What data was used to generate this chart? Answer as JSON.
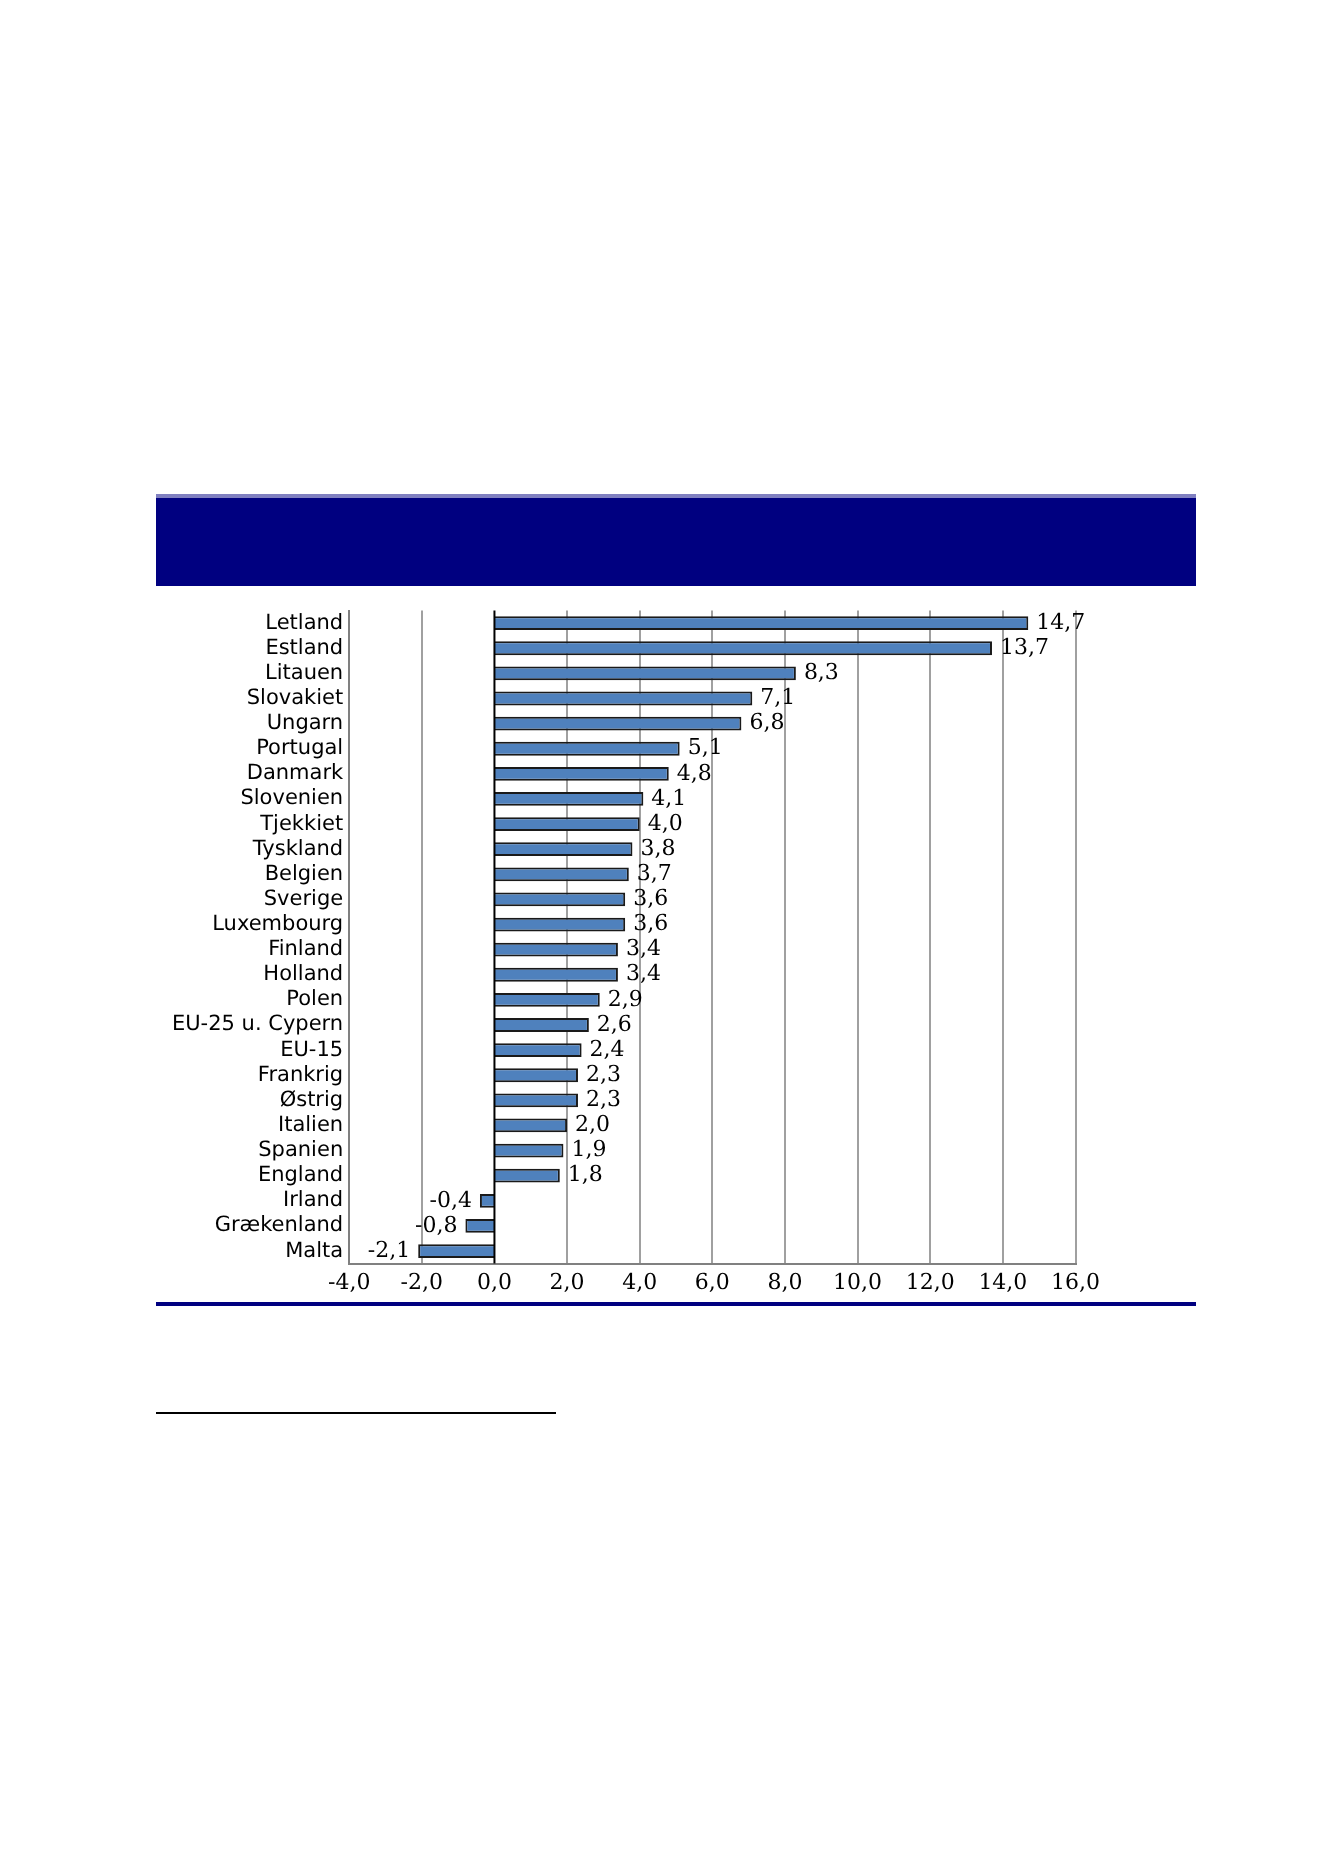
{
  "chart_data": {
    "type": "bar",
    "orientation": "horizontal",
    "categories": [
      "Letland",
      "Estland",
      "Litauen",
      "Slovakiet",
      "Ungarn",
      "Portugal",
      "Danmark",
      "Slovenien",
      "Tjekkiet",
      "Tyskland",
      "Belgien",
      "Sverige",
      "Luxembourg",
      "Finland",
      "Holland",
      "Polen",
      "EU-25 u. Cypern",
      "EU-15",
      "Frankrig",
      "Østrig",
      "Italien",
      "Spanien",
      "England",
      "Irland",
      "Grækenland",
      "Malta"
    ],
    "values": [
      14.7,
      13.7,
      8.3,
      7.1,
      6.8,
      5.1,
      4.8,
      4.1,
      4.0,
      3.8,
      3.7,
      3.6,
      3.6,
      3.4,
      3.4,
      2.9,
      2.6,
      2.4,
      2.3,
      2.3,
      2.0,
      1.9,
      1.8,
      -0.4,
      -0.8,
      -2.1
    ],
    "value_labels": [
      "14,7",
      "13,7",
      "8,3",
      "7,1",
      "6,8",
      "5,1",
      "4,8",
      "4,1",
      "4,0",
      "3,8",
      "3,7",
      "3,6",
      "3,6",
      "3,4",
      "3,4",
      "2,9",
      "2,6",
      "2,4",
      "2,3",
      "2,3",
      "2,0",
      "1,9",
      "1,8",
      "-0,4",
      "-0,8",
      "-2,1"
    ],
    "color": "#4f81bd",
    "xlim": [
      -4,
      16
    ],
    "xticks": [
      {
        "value": -4,
        "label": "-4,0"
      },
      {
        "value": -2,
        "label": "-2,0"
      },
      {
        "value": 0,
        "label": "0,0"
      },
      {
        "value": 2,
        "label": "2,0"
      },
      {
        "value": 4,
        "label": "4,0"
      },
      {
        "value": 6,
        "label": "6,0"
      },
      {
        "value": 8,
        "label": "8,0"
      },
      {
        "value": 10,
        "label": "10,0"
      },
      {
        "value": 12,
        "label": "12,0"
      },
      {
        "value": 14,
        "label": "14,0"
      },
      {
        "value": 16,
        "label": "16,0"
      }
    ],
    "grid": "x",
    "legend": false
  }
}
